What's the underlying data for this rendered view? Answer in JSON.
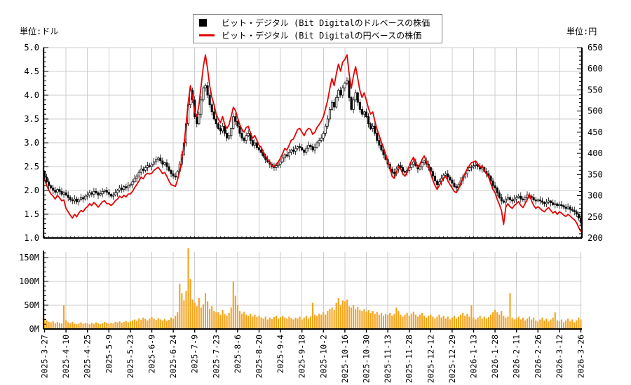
{
  "units": {
    "left": "単位:ドル",
    "right": "単位:円"
  },
  "legend": [
    {
      "marker": "black-square",
      "color": "#000000",
      "label": "ビット・デジタル (Bit Digitalのドルベースの株価"
    },
    {
      "marker": "red-line",
      "color": "#e60000",
      "label": "ビット・デジタル (Bit Digitalの円ベースの株価"
    }
  ],
  "colors": {
    "candle_up_fill": "#ffffff",
    "candle_down_fill": "#000000",
    "candle_stroke": "#000000",
    "jpy_line": "#e60000",
    "volume_bar": "#f5a31d",
    "grid": "#cccccc",
    "axis": "#000000"
  },
  "chart_data": [
    {
      "type": "candlestick",
      "name": "price-chart",
      "n_points": 251,
      "days_per_tick": 10,
      "x_tick_labels": [
        "2025-3-27",
        "2025-4-10",
        "2025-4-25",
        "2025-5-9",
        "2025-5-23",
        "2025-6-9",
        "2025-6-24",
        "2025-7-9",
        "2025-7-23",
        "2025-8-6",
        "2025-8-20",
        "2025-9-4",
        "2025-9-18",
        "2025-10-2",
        "2025-10-16",
        "2025-10-30",
        "2025-11-13",
        "2025-11-28",
        "2025-12-12",
        "2025-12-29",
        "2026-1-13",
        "2026-1-28",
        "2026-2-11",
        "2026-2-26",
        "2026-3-12",
        "2026-3-26"
      ],
      "left_axis": {
        "unit": "単位:ドル",
        "ylim": [
          1.0,
          5.0
        ],
        "tick_labels": [
          "5.0",
          "4.5",
          "4.0",
          "3.5",
          "3.0",
          "2.5",
          "2.0",
          "1.5",
          "1.0"
        ]
      },
      "right_axis": {
        "unit": "単位:円",
        "ylim": [
          200,
          650
        ],
        "tick_labels": [
          "650",
          "600",
          "550",
          "500",
          "450",
          "400",
          "350",
          "300",
          "250",
          "200"
        ]
      },
      "series": [
        {
          "name": "ビット・デジタル (Bit Digitalのドルベースの株価",
          "style": "candlestick",
          "unit": "USD",
          "color": "#000000",
          "close": [
            2.28,
            2.18,
            2.1,
            2.05,
            2.0,
            1.96,
            2.02,
            1.98,
            1.92,
            1.95,
            1.9,
            1.85,
            1.8,
            1.78,
            1.82,
            1.76,
            1.8,
            1.85,
            1.82,
            1.88,
            1.9,
            1.95,
            1.92,
            1.98,
            1.95,
            1.9,
            1.93,
            1.98,
            2.0,
            1.96,
            1.92,
            1.88,
            1.9,
            1.95,
            2.0,
            2.05,
            2.02,
            2.08,
            2.05,
            2.1,
            2.12,
            2.18,
            2.25,
            2.3,
            2.38,
            2.45,
            2.42,
            2.48,
            2.52,
            2.5,
            2.55,
            2.6,
            2.65,
            2.68,
            2.62,
            2.55,
            2.58,
            2.5,
            2.42,
            2.35,
            2.3,
            2.28,
            2.4,
            2.55,
            2.75,
            3.0,
            3.4,
            3.8,
            4.1,
            3.9,
            3.55,
            3.4,
            3.6,
            3.9,
            4.15,
            4.2,
            4.0,
            3.8,
            3.65,
            3.5,
            3.4,
            3.3,
            3.25,
            3.35,
            3.2,
            3.1,
            3.15,
            3.3,
            3.55,
            3.45,
            3.35,
            3.2,
            3.1,
            3.05,
            3.15,
            3.2,
            3.05,
            2.95,
            3.0,
            2.9,
            2.85,
            2.8,
            2.72,
            2.65,
            2.6,
            2.55,
            2.5,
            2.48,
            2.52,
            2.55,
            2.6,
            2.68,
            2.75,
            2.72,
            2.8,
            2.85,
            2.82,
            2.88,
            2.92,
            2.9,
            2.85,
            2.8,
            2.88,
            2.95,
            2.92,
            2.85,
            2.9,
            3.0,
            3.05,
            3.1,
            3.2,
            3.35,
            3.5,
            3.7,
            3.85,
            3.75,
            3.95,
            4.1,
            4.0,
            4.15,
            4.25,
            4.3,
            3.95,
            3.7,
            3.9,
            4.05,
            3.85,
            3.7,
            3.6,
            3.65,
            3.55,
            3.4,
            3.3,
            3.35,
            3.2,
            3.05,
            2.95,
            2.85,
            2.75,
            2.65,
            2.55,
            2.45,
            2.38,
            2.35,
            2.45,
            2.52,
            2.48,
            2.4,
            2.38,
            2.42,
            2.48,
            2.55,
            2.6,
            2.52,
            2.45,
            2.5,
            2.58,
            2.62,
            2.55,
            2.48,
            2.4,
            2.3,
            2.2,
            2.12,
            2.18,
            2.25,
            2.32,
            2.35,
            2.28,
            2.22,
            2.15,
            2.08,
            2.05,
            2.12,
            2.2,
            2.28,
            2.35,
            2.42,
            2.48,
            2.5,
            2.52,
            2.55,
            2.5,
            2.45,
            2.48,
            2.4,
            2.35,
            2.3,
            2.2,
            2.1,
            2.05,
            1.95,
            1.85,
            1.78,
            1.75,
            1.82,
            1.85,
            1.8,
            1.78,
            1.82,
            1.85,
            1.88,
            1.82,
            1.8,
            1.85,
            1.9,
            1.88,
            1.85,
            1.8,
            1.78,
            1.8,
            1.78,
            1.75,
            1.72,
            1.75,
            1.78,
            1.74,
            1.7,
            1.72,
            1.68,
            1.7,
            1.68,
            1.65,
            1.62,
            1.65,
            1.6,
            1.58,
            1.55,
            1.5,
            1.42,
            1.32
          ]
        },
        {
          "name": "ビット・デジタル (Bit Digitalの円ベースの株価",
          "style": "line",
          "unit": "JPY",
          "color": "#e60000",
          "values": [
            338,
            324,
            313,
            304,
            299,
            292,
            301,
            295,
            288,
            290,
            270,
            262,
            254,
            247,
            256,
            250,
            259,
            265,
            262,
            270,
            274,
            281,
            277,
            284,
            279,
            273,
            279,
            286,
            288,
            281,
            281,
            277,
            281,
            288,
            292,
            299,
            295,
            301,
            297,
            304,
            304,
            310,
            319,
            326,
            335,
            344,
            340,
            349,
            353,
            351,
            353,
            360,
            364,
            367,
            360,
            352,
            355,
            346,
            335,
            326,
            324,
            322,
            337,
            358,
            386,
            419,
            470,
            521,
            560,
            532,
            498,
            487,
            515,
            560,
            605,
            633,
            599,
            560,
            532,
            515,
            493,
            481,
            472,
            487,
            468,
            459,
            468,
            487,
            509,
            502,
            484,
            468,
            457,
            450,
            461,
            464,
            448,
            436,
            442,
            431,
            419,
            414,
            403,
            394,
            386,
            378,
            371,
            369,
            374,
            380,
            389,
            400,
            412,
            408,
            419,
            431,
            434,
            445,
            457,
            459,
            450,
            442,
            453,
            459,
            457,
            445,
            450,
            461,
            468,
            476,
            487,
            506,
            526,
            554,
            577,
            560,
            588,
            611,
            594,
            616,
            622,
            633,
            588,
            554,
            583,
            605,
            577,
            549,
            532,
            543,
            526,
            506,
            493,
            498,
            476,
            457,
            442,
            427,
            414,
            397,
            380,
            367,
            346,
            341,
            355,
            369,
            363,
            352,
            346,
            355,
            371,
            382,
            391,
            378,
            367,
            374,
            386,
            394,
            380,
            369,
            352,
            337,
            324,
            315,
            324,
            333,
            342,
            346,
            335,
            326,
            318,
            310,
            307,
            318,
            329,
            341,
            352,
            363,
            371,
            378,
            380,
            382,
            374,
            367,
            371,
            360,
            352,
            344,
            329,
            315,
            307,
            292,
            279,
            265,
            232,
            273,
            281,
            274,
            270,
            277,
            281,
            286,
            277,
            272,
            281,
            290,
            304,
            288,
            277,
            270,
            274,
            270,
            265,
            262,
            268,
            272,
            265,
            259,
            263,
            256,
            262,
            259,
            254,
            251,
            256,
            252,
            247,
            243,
            236,
            225,
            215
          ]
        }
      ]
    },
    {
      "type": "bar",
      "name": "volume-chart",
      "unit": "M shares",
      "ylim": [
        0,
        165
      ],
      "tick_labels": [
        "150M",
        "100M",
        "50M",
        "0M"
      ],
      "tick_values": [
        150,
        100,
        50,
        0
      ],
      "color": "#f5a31d",
      "values": [
        22,
        18,
        15,
        14,
        16,
        12,
        15,
        13,
        12,
        50,
        18,
        14,
        12,
        15,
        11,
        10,
        12,
        14,
        11,
        13,
        12,
        10,
        13,
        11,
        14,
        12,
        10,
        12,
        15,
        13,
        11,
        13,
        12,
        15,
        14,
        16,
        13,
        15,
        17,
        14,
        16,
        18,
        20,
        17,
        22,
        19,
        24,
        21,
        18,
        22,
        25,
        22,
        19,
        23,
        20,
        18,
        21,
        17,
        19,
        24,
        22,
        28,
        35,
        95,
        75,
        60,
        80,
        170,
        105,
        62,
        55,
        48,
        65,
        45,
        52,
        75,
        58,
        42,
        48,
        38,
        35,
        35,
        30,
        40,
        32,
        28,
        34,
        45,
        100,
        70,
        50,
        38,
        32,
        36,
        30,
        28,
        32,
        26,
        30,
        25,
        28,
        24,
        22,
        26,
        20,
        24,
        21,
        25,
        28,
        22,
        25,
        28,
        24,
        22,
        26,
        23,
        20,
        24,
        22,
        26,
        20,
        24,
        28,
        22,
        26,
        55,
        30,
        28,
        32,
        30,
        35,
        30,
        38,
        42,
        45,
        40,
        55,
        65,
        50,
        60,
        58,
        62,
        48,
        45,
        50,
        42,
        46,
        40,
        38,
        42,
        36,
        40,
        34,
        38,
        32,
        36,
        30,
        34,
        28,
        32,
        30,
        34,
        28,
        32,
        45,
        38,
        30,
        26,
        30,
        34,
        28,
        32,
        36,
        30,
        26,
        30,
        34,
        28,
        24,
        28,
        30,
        26,
        22,
        26,
        30,
        24,
        28,
        22,
        26,
        20,
        24,
        28,
        22,
        26,
        30,
        34,
        28,
        32,
        26,
        50,
        24,
        20,
        24,
        28,
        22,
        26,
        22,
        25,
        30,
        35,
        40,
        35,
        30,
        38,
        28,
        24,
        26,
        75,
        24,
        20,
        22,
        26,
        20,
        24,
        18,
        22,
        26,
        20,
        24,
        18,
        16,
        20,
        24,
        18,
        22,
        16,
        20,
        24,
        35,
        18,
        16,
        20,
        14,
        18,
        22,
        16,
        20,
        14,
        18,
        24,
        20
      ]
    }
  ]
}
